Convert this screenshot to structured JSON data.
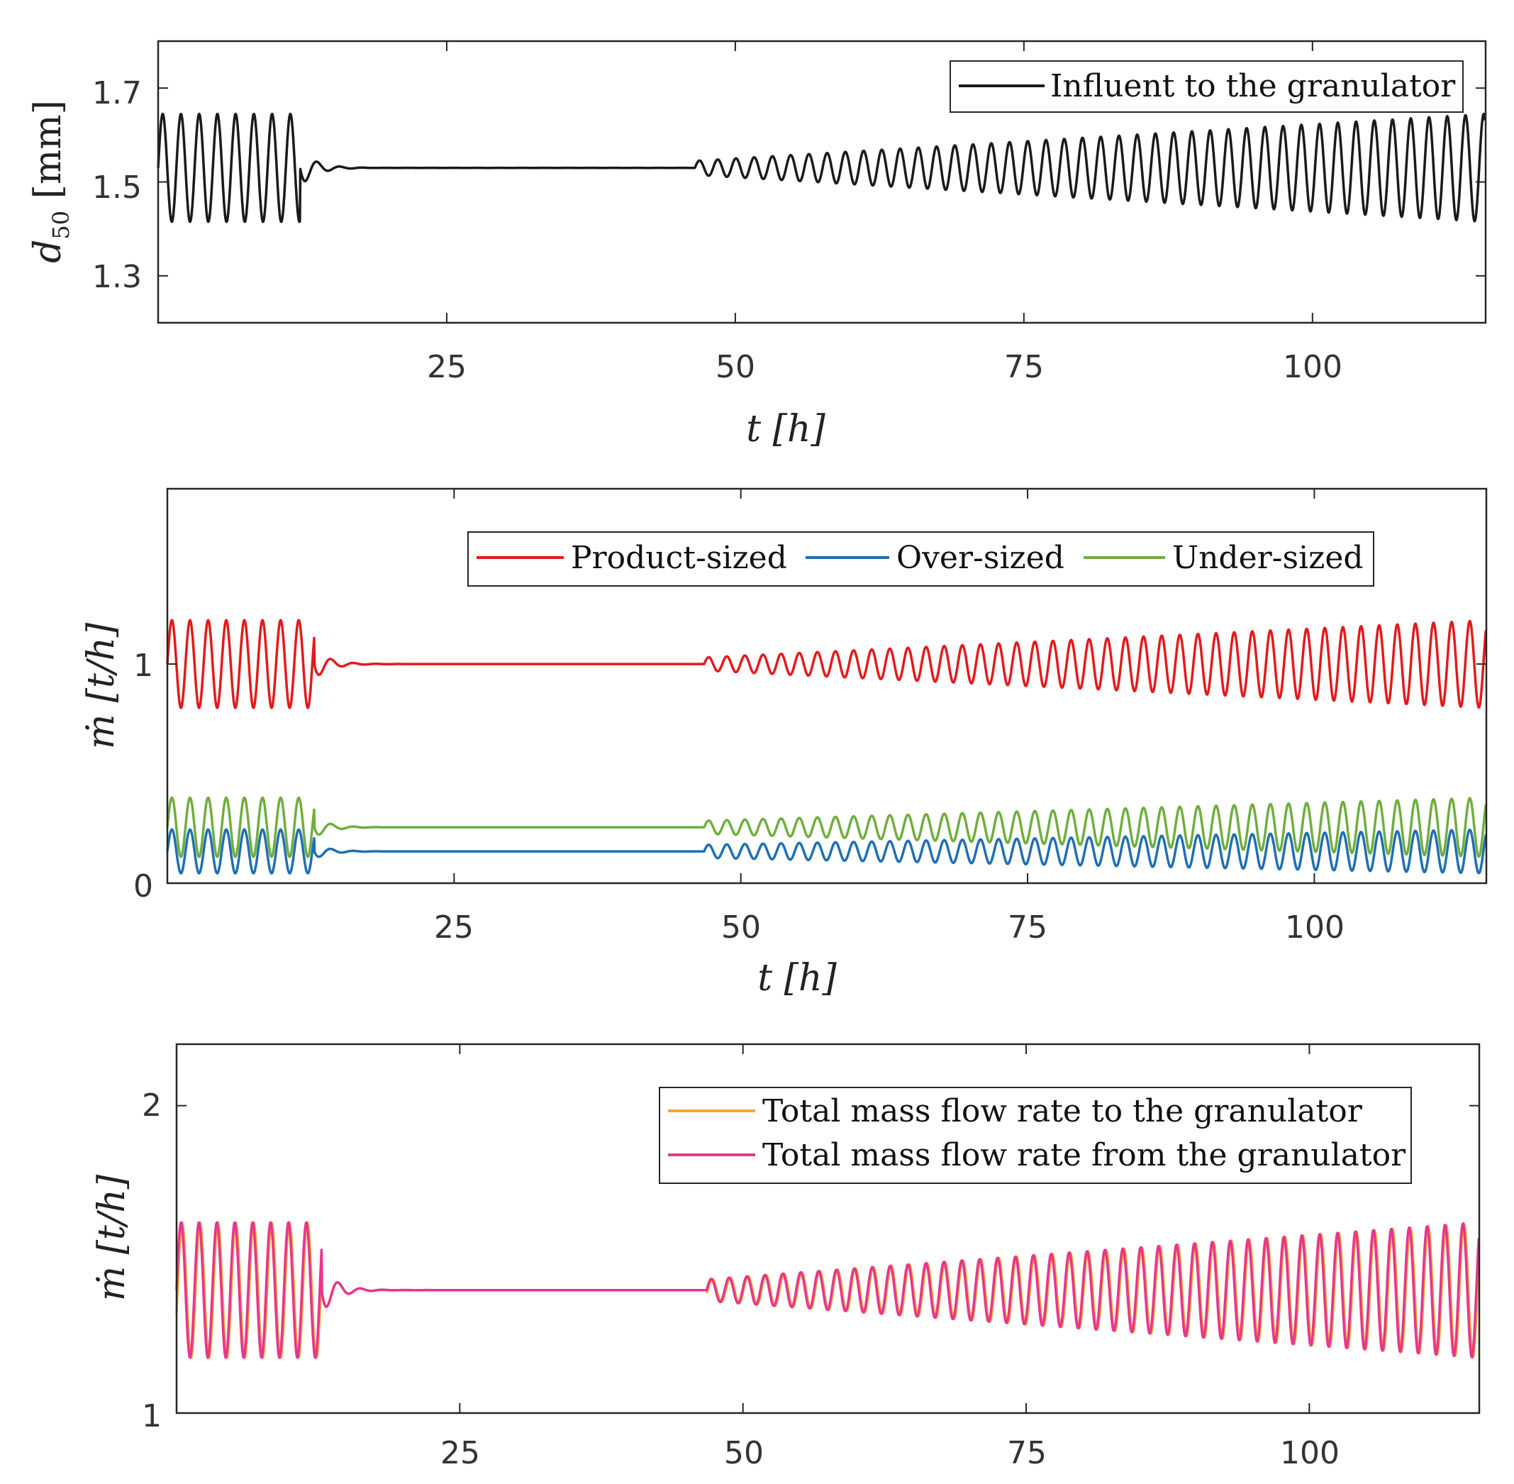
{
  "chart_data": [
    {
      "type": "line",
      "panel": "top",
      "xlabel": "t [h]",
      "ylabel": "d50 [mm]",
      "ylabel_main": "d",
      "ylabel_sub": "50",
      "ylabel_unit": " [mm]",
      "xlim": [
        0,
        115
      ],
      "ylim": [
        1.2,
        1.8
      ],
      "xticks": [
        "25",
        "50",
        "75",
        "100"
      ],
      "yticks": [
        "1.3",
        "1.5",
        "1.7"
      ],
      "legend_position": "top-right",
      "series": [
        {
          "name": "Influent to the granulator",
          "color": "#1a1a1a",
          "center": 1.53,
          "phase1_amplitude": 0.115,
          "phase2_amplitude_start": 0.015,
          "phase2_amplitude_end": 0.115,
          "disturbance_end_h": 12.3,
          "restart_h": 46.5
        }
      ]
    },
    {
      "type": "line",
      "panel": "middle",
      "xlabel": "t [h]",
      "ylabel": "ṁ [t/h]",
      "xlim": [
        0,
        115
      ],
      "ylim": [
        0,
        1.8
      ],
      "xticks": [
        "25",
        "50",
        "75",
        "100"
      ],
      "yticks": [
        "0",
        "1"
      ],
      "legend_position": "top-right",
      "series": [
        {
          "name": "Product-sized",
          "color": "#e31a1c",
          "center": 1.0,
          "phase1_amplitude": 0.2,
          "phase2_amplitude_start": 0.03,
          "phase2_amplitude_end": 0.2,
          "disturbance_end_h": 12.8,
          "restart_h": 46.8
        },
        {
          "name": "Over-sized",
          "color": "#1f6fb4",
          "center": 0.145,
          "phase1_amplitude": 0.1,
          "phase2_amplitude_start": 0.03,
          "phase2_amplitude_end": 0.1,
          "disturbance_end_h": 12.8,
          "restart_h": 46.8
        },
        {
          "name": "Under-sized",
          "color": "#6fae3f",
          "center": 0.255,
          "phase1_amplitude": 0.135,
          "phase2_amplitude_start": 0.03,
          "phase2_amplitude_end": 0.135,
          "disturbance_end_h": 12.8,
          "restart_h": 46.8
        }
      ]
    },
    {
      "type": "line",
      "panel": "bottom",
      "xlabel": "",
      "ylabel": "ṁ [t/h]",
      "xlim": [
        0,
        115
      ],
      "ylim": [
        1.0,
        2.2
      ],
      "xticks": [
        "25",
        "50",
        "75",
        "100"
      ],
      "yticks": [
        "1",
        "2"
      ],
      "legend_position": "top-right",
      "series": [
        {
          "name": "Total mass flow rate to the granulator",
          "color": "#f0a830",
          "center": 1.4,
          "phase1_amplitude": 0.22,
          "phase2_amplitude_start": 0.035,
          "phase2_amplitude_end": 0.22,
          "disturbance_end_h": 12.8,
          "restart_h": 46.8,
          "phase_shift": -0.35
        },
        {
          "name": "Total mass flow rate from the granulator",
          "color": "#e8358f",
          "center": 1.4,
          "phase1_amplitude": 0.22,
          "phase2_amplitude_start": 0.035,
          "phase2_amplitude_end": 0.22,
          "disturbance_end_h": 12.8,
          "restart_h": 46.8,
          "phase_shift": 0
        }
      ]
    }
  ]
}
